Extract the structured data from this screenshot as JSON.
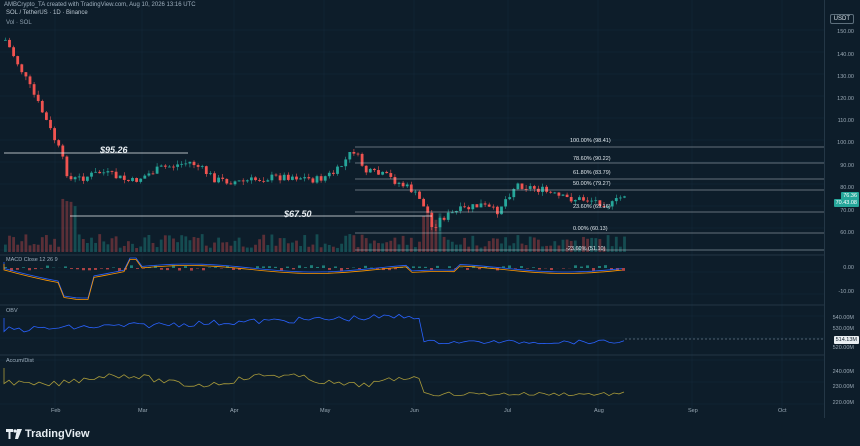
{
  "header": {
    "author_line": "AMBCrypto_TA created with TradingView.com, Aug 10, 2026 13:16 UTC",
    "symbol_line": "SOL / TetherUS · 1D · Binance",
    "volume_line": "Vol · SOL"
  },
  "price_axis": {
    "currency": "USDT",
    "ticks": [
      "150.00",
      "140.00",
      "130.00",
      "120.00",
      "110.00",
      "100.00",
      "90.00",
      "80.00",
      "70.00",
      "60.00"
    ],
    "last_price": "76.36",
    "last_price_secondary": "70.43.08"
  },
  "levels": {
    "high_label": "$95.26",
    "low_label": "$67.50"
  },
  "fib_levels": [
    {
      "label": "100.00% (98.41)"
    },
    {
      "label": "78.60% (90.22)"
    },
    {
      "label": "61.80% (83.79)"
    },
    {
      "label": "50.00% (79.27)"
    },
    {
      "label": "23.60% (69.16)"
    },
    {
      "label": "0.00% (60.13)"
    },
    {
      "label": "-23.60% (51.10)"
    }
  ],
  "panes": {
    "macd_label": "MACD Close 12 26 9",
    "macd_ticks": [
      "0.00",
      "-10.00"
    ],
    "obv_label": "OBV",
    "obv_ticks": [
      "540.00M",
      "530.00M",
      "520.00M"
    ],
    "obv_tag": "514.13M",
    "accum_label": "Accum/Dist",
    "accum_ticks": [
      "240.00M",
      "230.00M",
      "220.00M"
    ]
  },
  "x_axis": {
    "ticks": [
      "Feb",
      "Mar",
      "Apr",
      "May",
      "Jun",
      "Jul",
      "Aug",
      "Sep",
      "Oct"
    ]
  },
  "footer": {
    "brand": "TradingView"
  },
  "colors": {
    "background": "#0d1d2a",
    "up": "#26a69a",
    "down": "#ef5350",
    "fib_line": "#d6dde3",
    "macd_line": "#2962ff",
    "signal_line": "#ff9800",
    "obv_line": "#2962ff",
    "accum_line": "#a89a3a"
  },
  "icons": {
    "brand_logo": "tradingview-logo-icon"
  }
}
